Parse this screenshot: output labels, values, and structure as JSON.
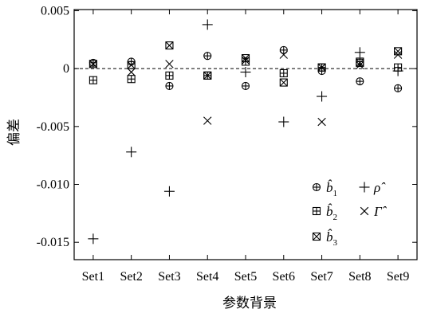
{
  "chart_data": {
    "type": "scatter",
    "title": "",
    "xlabel": "参数背景",
    "ylabel": "偏差",
    "categories": [
      "Set1",
      "Set2",
      "Set3",
      "Set4",
      "Set5",
      "Set6",
      "Set7",
      "Set8",
      "Set9"
    ],
    "ylim": [
      -0.0165,
      0.0051
    ],
    "y_ticks": [
      0.005,
      0,
      -0.005,
      -0.01,
      -0.015
    ],
    "y_tick_labels": [
      "0.005",
      "0",
      "-0.005",
      "-0.010",
      "-0.015"
    ],
    "zero_line": true,
    "grid": false,
    "legend_position": "bottom-right",
    "series": [
      {
        "name": "b̂1",
        "symbol": "circle-plus",
        "values": [
          0.0005,
          0.0006,
          -0.0015,
          0.0011,
          -0.0015,
          0.0016,
          -0.0002,
          -0.0011,
          -0.0017
        ]
      },
      {
        "name": "b̂2",
        "symbol": "square-plus",
        "values": [
          -0.001,
          -0.0009,
          -0.0006,
          -0.0006,
          0.0006,
          -0.0004,
          0.0001,
          0.0006,
          0.0001
        ]
      },
      {
        "name": "b̂3",
        "symbol": "square-x",
        "values": [
          0.0004,
          0.0003,
          0.002,
          -0.0006,
          0.0009,
          -0.0012,
          0.0001,
          0.0005,
          0.0015
        ]
      },
      {
        "name": "ρ̂",
        "symbol": "plus",
        "values": [
          -0.0147,
          -0.0072,
          -0.0106,
          0.0038,
          -0.0003,
          -0.0046,
          -0.0024,
          0.0014,
          -0.0002
        ]
      },
      {
        "name": "Γ̂",
        "symbol": "x",
        "values": [
          0.0004,
          -0.0003,
          0.0004,
          -0.0045,
          0.0007,
          0.0012,
          -0.0046,
          0.0003,
          0.0012
        ]
      }
    ],
    "legend": [
      {
        "symbol": "circle-plus",
        "label": "b̂1",
        "main": "b̂",
        "sub": "1"
      },
      {
        "symbol": "square-plus",
        "label": "b̂2",
        "main": "b̂",
        "sub": "2"
      },
      {
        "symbol": "square-x",
        "label": "b̂3",
        "main": "b̂",
        "sub": "3"
      },
      {
        "symbol": "plus",
        "label": "ρ̂",
        "main": "ρ̂",
        "sub": ""
      },
      {
        "symbol": "x",
        "label": "Γ̂",
        "main": "Γ̂",
        "sub": ""
      }
    ]
  }
}
